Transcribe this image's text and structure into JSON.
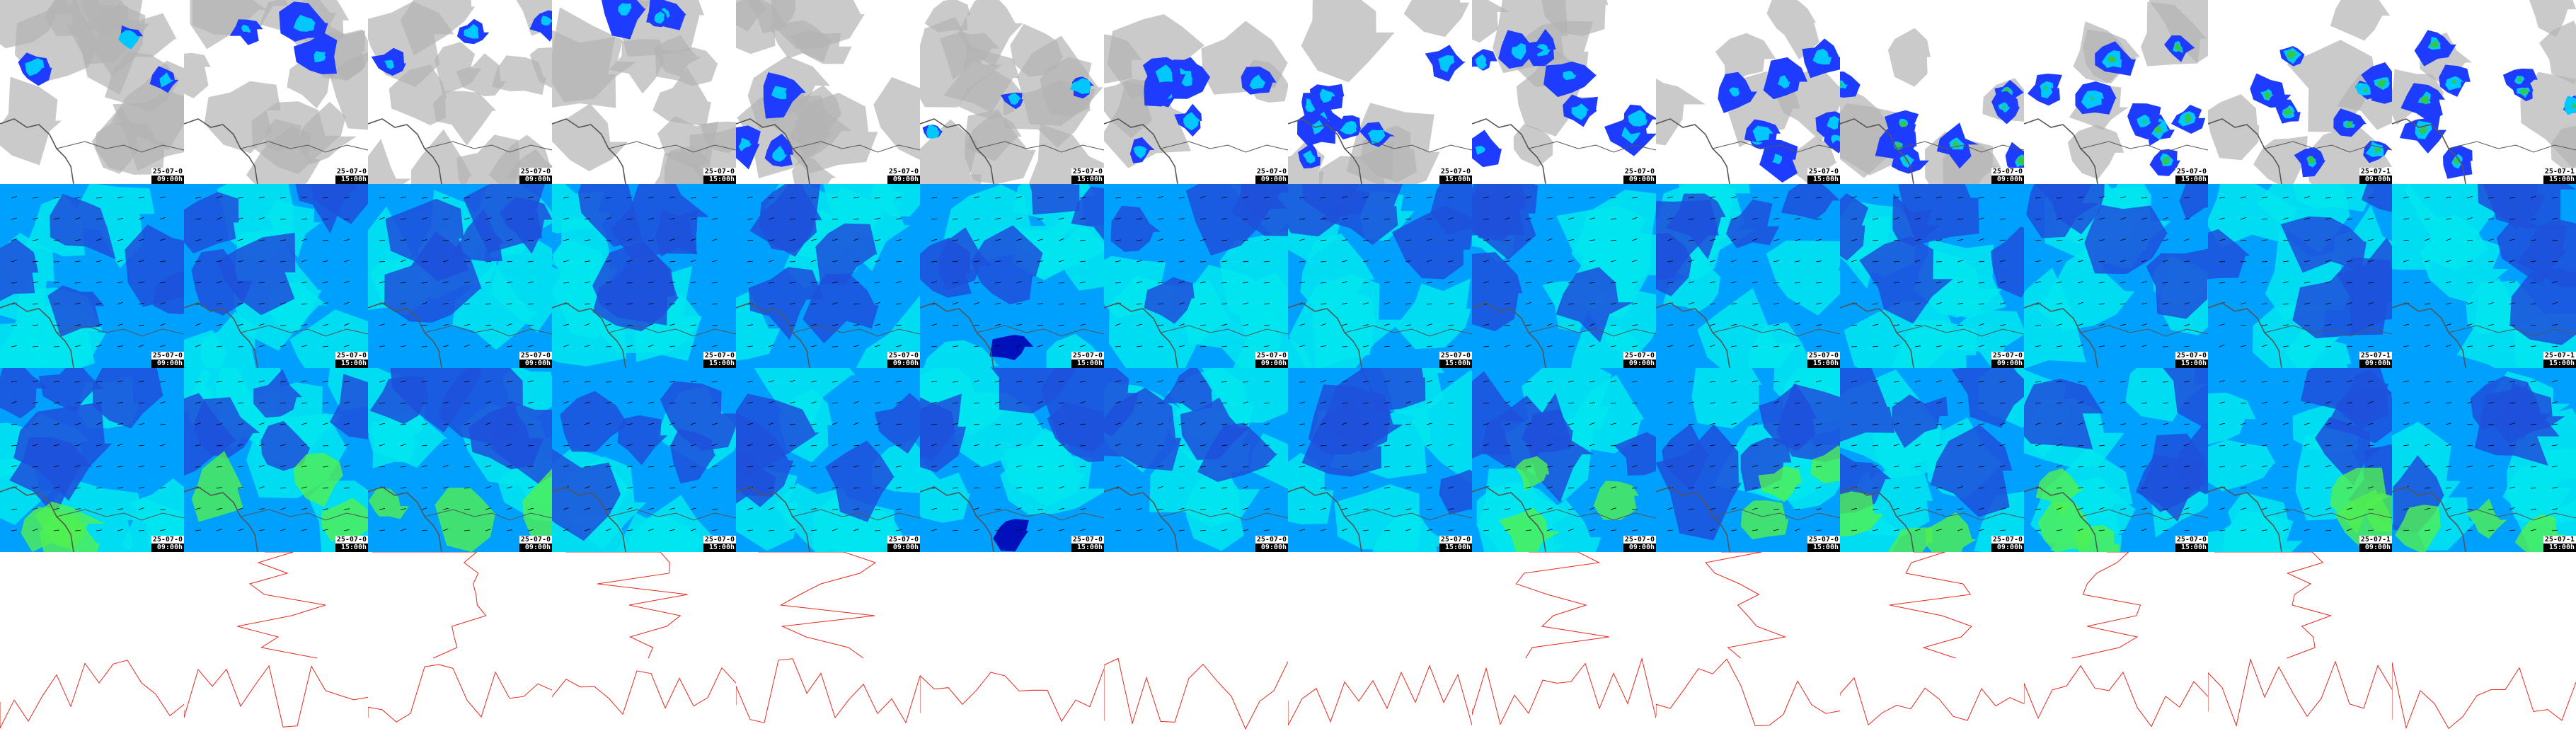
{
  "layout": {
    "columns": 14,
    "rows": 4
  },
  "rows": [
    {
      "id": "precip-clouds",
      "frames": [
        {
          "date": "25-07-0",
          "time": "09:00h"
        },
        {
          "date": "25-07-0",
          "time": "15:00h"
        },
        {
          "date": "25-07-0",
          "time": "09:00h"
        },
        {
          "date": "25-07-0",
          "time": "15:00h"
        },
        {
          "date": "25-07-0",
          "time": "09:00h"
        },
        {
          "date": "25-07-0",
          "time": "15:00h"
        },
        {
          "date": "25-07-0",
          "time": "09:00h"
        },
        {
          "date": "25-07-0",
          "time": "15:00h"
        },
        {
          "date": "25-07-0",
          "time": "09:00h"
        },
        {
          "date": "25-07-0",
          "time": "15:00h"
        },
        {
          "date": "25-07-0",
          "time": "09:00h"
        },
        {
          "date": "25-07-0",
          "time": "15:00h"
        },
        {
          "date": "25-07-1",
          "time": "09:00h"
        },
        {
          "date": "25-07-1",
          "time": "15:00h"
        }
      ]
    },
    {
      "id": "wind-upper",
      "frames": [
        {
          "date": "25-07-0",
          "time": "09:00h"
        },
        {
          "date": "25-07-0",
          "time": "15:00h"
        },
        {
          "date": "25-07-0",
          "time": "09:00h"
        },
        {
          "date": "25-07-0",
          "time": "15:00h"
        },
        {
          "date": "25-07-0",
          "time": "09:00h"
        },
        {
          "date": "25-07-0",
          "time": "15:00h"
        },
        {
          "date": "25-07-0",
          "time": "09:00h"
        },
        {
          "date": "25-07-0",
          "time": "15:00h"
        },
        {
          "date": "25-07-0",
          "time": "09:00h"
        },
        {
          "date": "25-07-0",
          "time": "15:00h"
        },
        {
          "date": "25-07-0",
          "time": "09:00h"
        },
        {
          "date": "25-07-0",
          "time": "15:00h"
        },
        {
          "date": "25-07-1",
          "time": "09:00h"
        },
        {
          "date": "25-07-1",
          "time": "15:00h"
        }
      ]
    },
    {
      "id": "wind-lower",
      "frames": [
        {
          "date": "25-07-0",
          "time": "09:00h"
        },
        {
          "date": "25-07-0",
          "time": "15:00h"
        },
        {
          "date": "25-07-0",
          "time": "09:00h"
        },
        {
          "date": "25-07-0",
          "time": "15:00h"
        },
        {
          "date": "25-07-0",
          "time": "09:00h"
        },
        {
          "date": "25-07-0",
          "time": "15:00h"
        },
        {
          "date": "25-07-0",
          "time": "09:00h"
        },
        {
          "date": "25-07-0",
          "time": "15:00h"
        },
        {
          "date": "25-07-0",
          "time": "09:00h"
        },
        {
          "date": "25-07-0",
          "time": "15:00h"
        },
        {
          "date": "25-07-0",
          "time": "09:00h"
        },
        {
          "date": "25-07-0",
          "time": "15:00h"
        },
        {
          "date": "25-07-1",
          "time": "09:00h"
        },
        {
          "date": "25-07-1",
          "time": "15:00h"
        }
      ]
    },
    {
      "id": "contours",
      "frames": []
    }
  ],
  "colors": {
    "cloud": "#b4b4b4",
    "precip_light": "#1e3cff",
    "precip_mid": "#00c8ff",
    "precip_high": "#32c850",
    "wind_bg": "#00a0ff",
    "wind_deep": "#1e50dc",
    "wind_cyan": "#00e6f0",
    "wind_green": "#50f050",
    "wind_darkest": "#0000b4",
    "coast": "#555555",
    "contour": "#e8281e"
  }
}
